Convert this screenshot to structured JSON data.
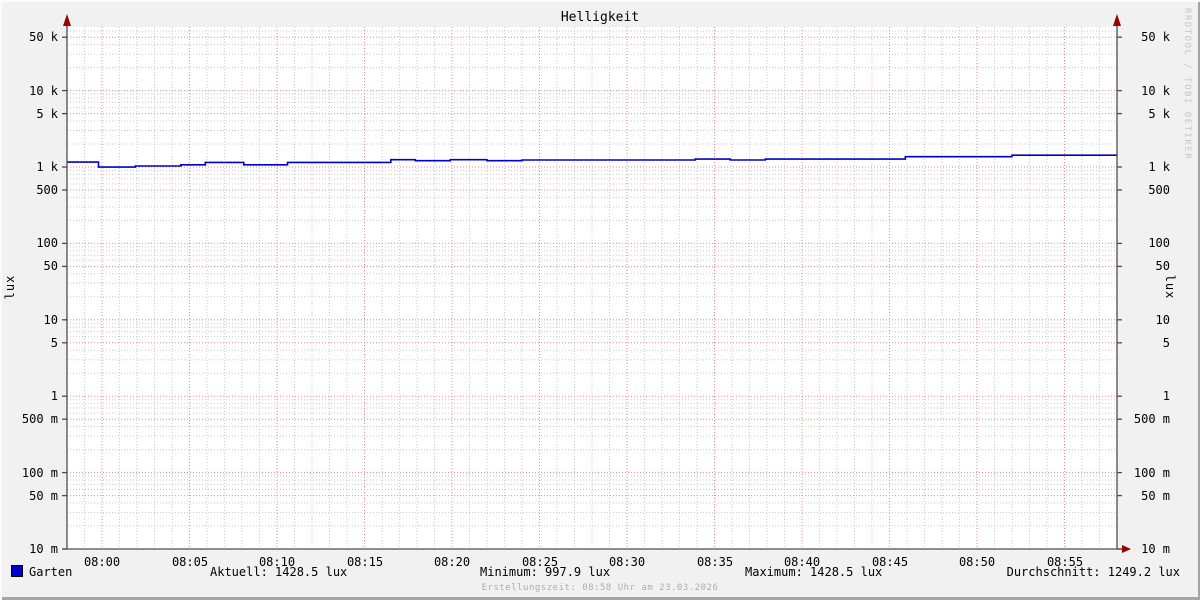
{
  "title": "Helligkeit",
  "watermark": "RRDTOOL / TOBI OETIKER",
  "footer": "Erstellungszeit: 08:58 Uhr am 23.03.2026",
  "legend": {
    "series_label": "Garten",
    "series_color": "#0000cc",
    "stats": [
      {
        "text": "Aktuell: 1428.5 lux"
      },
      {
        "text": "Minimum: 997.9 lux"
      },
      {
        "text": "Maximum: 1428.5 lux"
      },
      {
        "text": "Durchschnitt: 1249.2 lux"
      }
    ]
  },
  "chart_data": {
    "type": "line",
    "title": "Helligkeit",
    "ylabel": "lux",
    "xlabel": "",
    "y_scale": "logarithmic",
    "ylim": [
      0.01,
      60000
    ],
    "grid": {
      "style": "dotted",
      "major_color": "#ee8888",
      "minor_color": "#bdbdbd",
      "axis_color": "#4d4d4d",
      "arrow_color": "#990000"
    },
    "y_ticks": [
      {
        "label": "50 k",
        "value": 50000
      },
      {
        "label": "10 k",
        "value": 10000
      },
      {
        "label": "5 k",
        "value": 5000
      },
      {
        "label": "1 k",
        "value": 1000
      },
      {
        "label": "500",
        "value": 500
      },
      {
        "label": "100",
        "value": 100
      },
      {
        "label": "50",
        "value": 50
      },
      {
        "label": "10",
        "value": 10
      },
      {
        "label": "5",
        "value": 5
      },
      {
        "label": "1",
        "value": 1
      },
      {
        "label": "500 m",
        "value": 0.5
      },
      {
        "label": "100 m",
        "value": 0.1
      },
      {
        "label": "50 m",
        "value": 0.05
      },
      {
        "label": "10 m",
        "value": 0.01
      }
    ],
    "x_axis": {
      "start_time": "07:58",
      "end_time": "08:58",
      "major_tick_min": 5,
      "minor_tick_min": 1,
      "ticks": [
        {
          "label": "08:00",
          "t_min": 2
        },
        {
          "label": "08:05",
          "t_min": 7
        },
        {
          "label": "08:10",
          "t_min": 12
        },
        {
          "label": "08:15",
          "t_min": 17
        },
        {
          "label": "08:20",
          "t_min": 22
        },
        {
          "label": "08:25",
          "t_min": 27
        },
        {
          "label": "08:30",
          "t_min": 32
        },
        {
          "label": "08:35",
          "t_min": 37
        },
        {
          "label": "08:40",
          "t_min": 42
        },
        {
          "label": "08:45",
          "t_min": 47
        },
        {
          "label": "08:50",
          "t_min": 52
        },
        {
          "label": "08:55",
          "t_min": 57
        }
      ]
    },
    "series": [
      {
        "name": "Garten",
        "color": "#0000cc",
        "unit": "lux",
        "stats": {
          "aktuell": 1428.5,
          "minimum": 997.9,
          "maximum": 1428.5,
          "durchschnitt": 1249.2
        },
        "points": [
          {
            "t_min": 0.0,
            "lux": 1160
          },
          {
            "t_min": 1.8,
            "lux": 997.9
          },
          {
            "t_min": 3.9,
            "lux": 1030
          },
          {
            "t_min": 6.5,
            "lux": 1070
          },
          {
            "t_min": 7.9,
            "lux": 1150
          },
          {
            "t_min": 10.1,
            "lux": 1070
          },
          {
            "t_min": 12.6,
            "lux": 1150
          },
          {
            "t_min": 18.5,
            "lux": 1245
          },
          {
            "t_min": 19.9,
            "lux": 1210
          },
          {
            "t_min": 21.9,
            "lux": 1245
          },
          {
            "t_min": 24.0,
            "lux": 1210
          },
          {
            "t_min": 26.0,
            "lux": 1235
          },
          {
            "t_min": 35.9,
            "lux": 1270
          },
          {
            "t_min": 37.9,
            "lux": 1235
          },
          {
            "t_min": 39.9,
            "lux": 1270
          },
          {
            "t_min": 47.9,
            "lux": 1365
          },
          {
            "t_min": 54.0,
            "lux": 1428.5
          },
          {
            "t_min": 60.0,
            "lux": 1428.5
          }
        ]
      }
    ]
  }
}
